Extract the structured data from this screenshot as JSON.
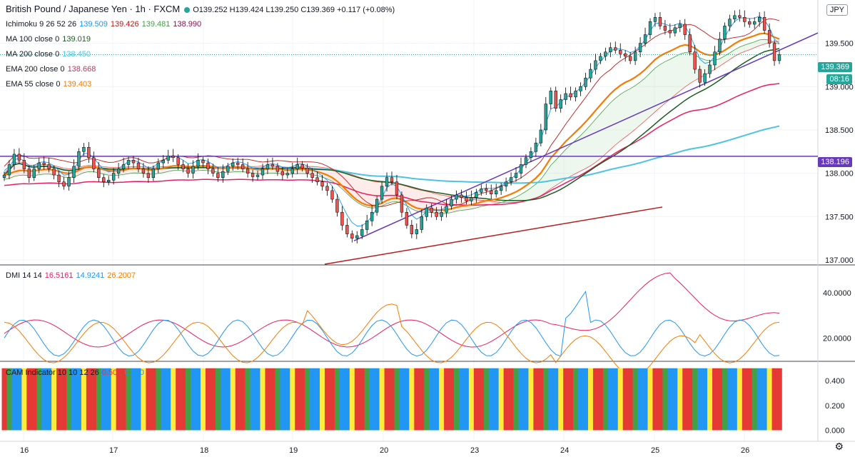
{
  "header": {
    "symbol": "British Pound / Japanese Yen · 1h · FXCM",
    "ohlc": "O139.252 H139.424 L139.250 C139.369 +0.117 (+0.08%)"
  },
  "indicators": [
    {
      "label": "Ichimoku 9 26 52 26",
      "values": [
        {
          "v": "139.509",
          "color": "#2196f3"
        },
        {
          "v": "139.426",
          "color": "#b71c1c"
        },
        {
          "v": "139.481",
          "color": "#43a047"
        },
        {
          "v": "138.990",
          "color": "#880e4f"
        }
      ]
    },
    {
      "label": "MA 100 close 0",
      "values": [
        {
          "v": "139.019",
          "color": "#1b5e20"
        }
      ]
    },
    {
      "label": "MA 200 close 0",
      "values": [
        {
          "v": "138.450",
          "color": "#4dc3e0"
        }
      ]
    },
    {
      "label": "EMA 200 close 0",
      "values": [
        {
          "v": "138.668",
          "color": "#e91e63"
        }
      ]
    },
    {
      "label": "EMA 55 close 0",
      "values": [
        {
          "v": "139.403",
          "color": "#f57c00"
        }
      ]
    }
  ],
  "dmi_legend": {
    "label": "DMI 14 14",
    "values": [
      {
        "v": "16.5161",
        "color": "#e91e63"
      },
      {
        "v": "14.9241",
        "color": "#2196f3"
      },
      {
        "v": "26.2007",
        "color": "#f57c00"
      }
    ]
  },
  "cam_legend": {
    "label": "CAM Indicator 10 10 12 26",
    "values": [
      {
        "v": "0.500",
        "color": "#e53935"
      },
      {
        "v": "0.000",
        "color": "#2196f3"
      }
    ]
  },
  "currency_badge": "JPY",
  "price_labels": {
    "last": "139.369",
    "countdown": "08:16",
    "hline": "138.196"
  },
  "colors": {
    "up": "#26a69a",
    "down": "#ef5350",
    "hline": "#673ab7"
  },
  "chart_data": {
    "type": "candlestick",
    "x_ticks": [
      "16",
      "17",
      "18",
      "19",
      "20",
      "23",
      "24",
      "25",
      "26"
    ],
    "main_panel": {
      "y_ticks": [
        "139.500",
        "139.000",
        "138.500",
        "138.000",
        "137.500",
        "137.000"
      ],
      "ylim": [
        136.95,
        140.0
      ],
      "horizontal_line": 138.196,
      "close_series": [
        137.98,
        138.1,
        138.22,
        138.15,
        138.05,
        137.95,
        138.05,
        138.12,
        138.1,
        138.05,
        137.98,
        137.9,
        137.85,
        137.95,
        138.08,
        138.25,
        138.3,
        138.18,
        138.05,
        137.95,
        137.9,
        137.92,
        138.0,
        138.05,
        138.1,
        138.15,
        138.12,
        138.05,
        138.0,
        137.95,
        138.05,
        138.12,
        138.15,
        138.2,
        138.18,
        138.1,
        138.05,
        138.0,
        138.08,
        138.15,
        138.12,
        138.05,
        138.0,
        137.95,
        138.02,
        138.08,
        138.12,
        138.1,
        138.05,
        138.0,
        137.96,
        137.98,
        138.05,
        138.1,
        138.08,
        138.02,
        137.98,
        138.0,
        138.05,
        138.1,
        138.06,
        138.0,
        137.95,
        137.9,
        137.85,
        137.8,
        137.7,
        137.55,
        137.4,
        137.3,
        137.25,
        137.28,
        137.35,
        137.45,
        137.55,
        137.7,
        137.85,
        137.95,
        137.9,
        137.75,
        137.55,
        137.4,
        137.3,
        137.35,
        137.5,
        137.6,
        137.55,
        137.5,
        137.55,
        137.62,
        137.7,
        137.75,
        137.72,
        137.68,
        137.72,
        137.78,
        137.82,
        137.8,
        137.76,
        137.8,
        137.85,
        137.9,
        137.95,
        138.0,
        138.1,
        138.18,
        138.25,
        138.35,
        138.5,
        138.8,
        138.95,
        138.75,
        138.85,
        138.92,
        138.88,
        138.95,
        139.0,
        139.1,
        139.2,
        139.3,
        139.35,
        139.4,
        139.45,
        139.42,
        139.38,
        139.35,
        139.3,
        139.4,
        139.5,
        139.6,
        139.75,
        139.8,
        139.7,
        139.65,
        139.62,
        139.68,
        139.72,
        139.6,
        139.4,
        139.2,
        139.05,
        139.15,
        139.25,
        139.4,
        139.55,
        139.7,
        139.78,
        139.82,
        139.8,
        139.75,
        139.72,
        139.75,
        139.8,
        139.65,
        139.5,
        139.3,
        139.37
      ],
      "ma100_end": 139.019,
      "ma200_end": 138.45,
      "ema200_end": 138.668,
      "ema55_end": 139.403
    },
    "dmi_panel": {
      "y_ticks": [
        "40.0000",
        "20.0000"
      ],
      "ylim": [
        10,
        52
      ]
    },
    "cam_panel": {
      "y_ticks": [
        "0.400",
        "0.200",
        "0.000"
      ],
      "ylim": [
        -0.02,
        0.55
      ]
    }
  }
}
